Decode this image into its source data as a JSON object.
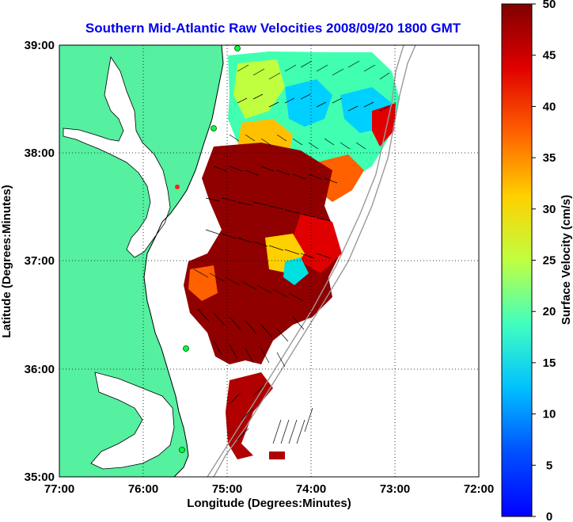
{
  "title": "Southern Mid-Atlantic Raw Velocities 2008/09/20 1800 GMT",
  "x_axis": {
    "label": "Longitude (Degrees:Minutes)",
    "ticks": [
      "77:00",
      "76:00",
      "75:00",
      "74:00",
      "73:00",
      "72:00"
    ]
  },
  "y_axis": {
    "label": "Latitude (Degrees:Minutes)",
    "ticks": [
      "39:00",
      "38:00",
      "37:00",
      "36:00",
      "35:00"
    ]
  },
  "colorbar": {
    "label": "Surface Velocity (cm/s)",
    "ticks": [
      "50",
      "45",
      "40",
      "35",
      "30",
      "25",
      "20",
      "15",
      "10",
      "5",
      "0"
    ],
    "range": [
      0,
      50
    ],
    "colormap": "jet"
  },
  "map": {
    "lon_range": [
      -77,
      -72
    ],
    "lat_range": [
      35,
      39
    ],
    "land_color": "#55f0a0",
    "coast_color": "#000000",
    "grid": "dotted",
    "site_markers": "green-dots"
  }
}
